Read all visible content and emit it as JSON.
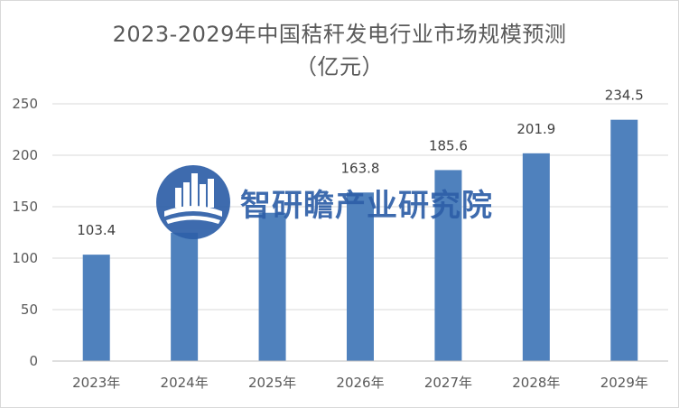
{
  "chart_data": {
    "type": "bar",
    "title": "2023-2029年中国秸秆发电行业市场规模预测",
    "subtitle": "（亿元）",
    "categories": [
      "2023年",
      "2024年",
      "2025年",
      "2026年",
      "2027年",
      "2028年",
      "2029年"
    ],
    "values": [
      103.4,
      124.7,
      144.1,
      163.8,
      185.6,
      201.9,
      234.5
    ],
    "value_labels": [
      "103.4",
      "",
      "",
      "163.8",
      "185.6",
      "201.9",
      "234.5"
    ],
    "yticks": [
      "0",
      "50",
      "100",
      "150",
      "200",
      "250"
    ],
    "ylim": [
      0,
      250
    ],
    "grid": true,
    "legend": "none",
    "bar_color": "#4f81bd"
  },
  "watermark": {
    "text": "智研瞻产业研究院",
    "color": "#2e5fa8"
  }
}
